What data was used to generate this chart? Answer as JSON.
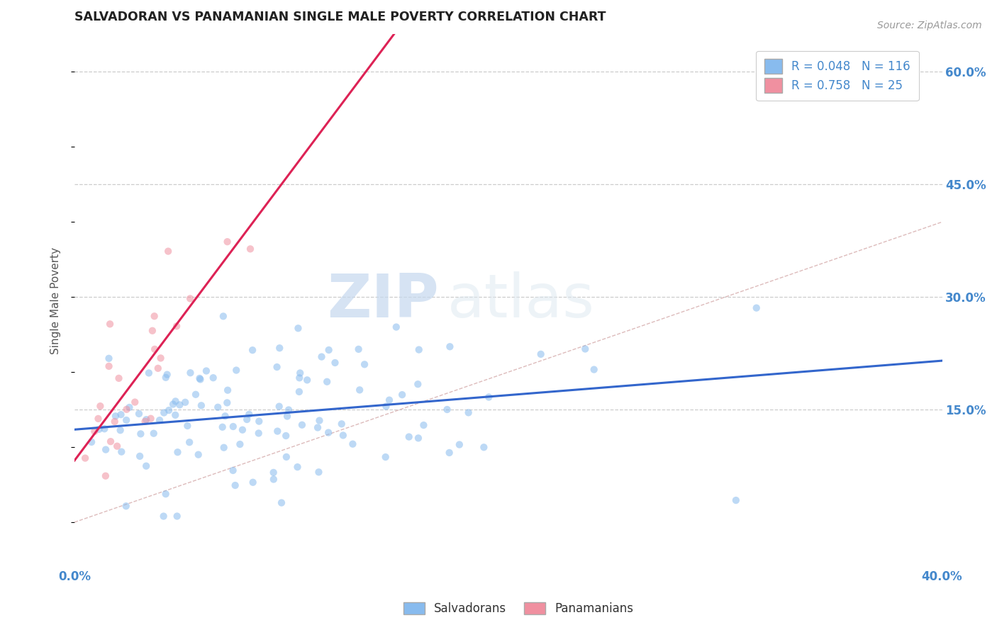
{
  "title": "SALVADORAN VS PANAMANIAN SINGLE MALE POVERTY CORRELATION CHART",
  "source_text": "Source: ZipAtlas.com",
  "ylabel_text": "Single Male Poverty",
  "watermark_zip": "ZIP",
  "watermark_atlas": "atlas",
  "x_min": 0.0,
  "x_max": 0.4,
  "y_min": -0.06,
  "y_max": 0.65,
  "y_ticks": [
    0.15,
    0.3,
    0.45,
    0.6
  ],
  "y_tick_labels": [
    "15.0%",
    "30.0%",
    "45.0%",
    "60.0%"
  ],
  "grid_color": "#cccccc",
  "background_color": "#ffffff",
  "salvadorans_color": "#88bbee",
  "panamanians_color": "#f090a0",
  "trend_salvadorans_color": "#3366cc",
  "trend_panamanians_color": "#dd2255",
  "diag_line_color": "#ddbbbb",
  "title_color": "#222222",
  "tick_label_color": "#4488cc",
  "source_color": "#999999",
  "legend_r1": "R = 0.048",
  "legend_n1": "N = 116",
  "legend_r2": "R = 0.758",
  "legend_n2": "N = 25",
  "legend_label1": "Salvadorans",
  "legend_label2": "Panamanians",
  "N1": 116,
  "N2": 25,
  "seed": 42,
  "dot_size": 55,
  "dot_alpha": 0.55
}
